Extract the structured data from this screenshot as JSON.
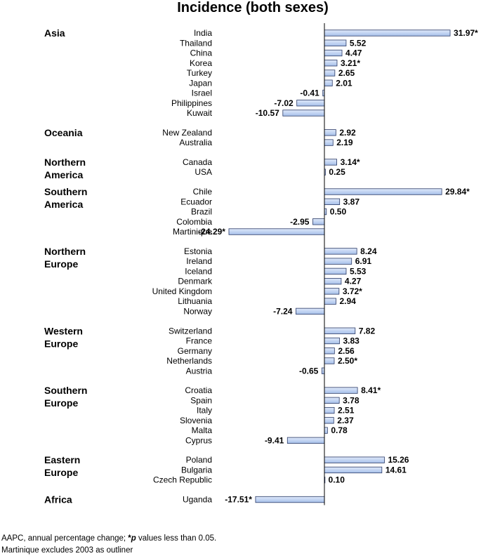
{
  "chart_data": {
    "type": "bar",
    "orientation": "horizontal",
    "title": "Incidence (both sexes)",
    "xlabel": "",
    "ylabel": "",
    "xlim": [
      -24.29,
      31.97
    ],
    "groups": [
      {
        "region": [
          "Asia"
        ],
        "items": [
          {
            "country": "India",
            "value": 31.97,
            "label": "31.97*"
          },
          {
            "country": "Thailand",
            "value": 5.52,
            "label": "5.52"
          },
          {
            "country": "China",
            "value": 4.47,
            "label": "4.47"
          },
          {
            "country": "Korea",
            "value": 3.21,
            "label": "3.21*"
          },
          {
            "country": "Turkey",
            "value": 2.65,
            "label": "2.65"
          },
          {
            "country": "Japan",
            "value": 2.01,
            "label": "2.01"
          },
          {
            "country": "Israel",
            "value": -0.41,
            "label": "-0.41"
          },
          {
            "country": "Philippines",
            "value": -7.02,
            "label": "-7.02"
          },
          {
            "country": "Kuwait",
            "value": -10.57,
            "label": "-10.57"
          }
        ]
      },
      {
        "region": [
          "Oceania"
        ],
        "items": [
          {
            "country": "New Zealand",
            "value": 2.92,
            "label": "2.92"
          },
          {
            "country": "Australia",
            "value": 2.19,
            "label": "2.19"
          }
        ]
      },
      {
        "region": [
          "Northern",
          "America"
        ],
        "items": [
          {
            "country": "Canada",
            "value": 3.14,
            "label": "3.14*"
          },
          {
            "country": "USA",
            "value": 0.25,
            "label": "0.25"
          }
        ]
      },
      {
        "region": [
          "Southern",
          "America"
        ],
        "items": [
          {
            "country": "Chile",
            "value": 29.84,
            "label": "29.84*"
          },
          {
            "country": "Ecuador",
            "value": 3.87,
            "label": "3.87"
          },
          {
            "country": "Brazil",
            "value": 0.5,
            "label": "0.50"
          },
          {
            "country": "Colombia",
            "value": -2.95,
            "label": "-2.95"
          },
          {
            "country": "Martinique",
            "value": -24.29,
            "label": "-24.29*"
          }
        ]
      },
      {
        "region": [
          "Northern",
          "Europe"
        ],
        "items": [
          {
            "country": "Estonia",
            "value": 8.24,
            "label": "8.24"
          },
          {
            "country": "Ireland",
            "value": 6.91,
            "label": "6.91"
          },
          {
            "country": "Iceland",
            "value": 5.53,
            "label": "5.53"
          },
          {
            "country": "Denmark",
            "value": 4.27,
            "label": "4.27"
          },
          {
            "country": "United Kingdom",
            "value": 3.72,
            "label": "3.72*"
          },
          {
            "country": "Lithuania",
            "value": 2.94,
            "label": "2.94"
          },
          {
            "country": "Norway",
            "value": -7.24,
            "label": "-7.24"
          }
        ]
      },
      {
        "region": [
          "Western",
          "Europe"
        ],
        "items": [
          {
            "country": "Switzerland",
            "value": 7.82,
            "label": "7.82"
          },
          {
            "country": "France",
            "value": 3.83,
            "label": "3.83"
          },
          {
            "country": "Germany",
            "value": 2.56,
            "label": "2.56"
          },
          {
            "country": "Netherlands",
            "value": 2.5,
            "label": "2.50*"
          },
          {
            "country": "Austria",
            "value": -0.65,
            "label": "-0.65"
          }
        ]
      },
      {
        "region": [
          "Southern",
          "Europe"
        ],
        "items": [
          {
            "country": "Croatia",
            "value": 8.41,
            "label": "8.41*"
          },
          {
            "country": "Spain",
            "value": 3.78,
            "label": "3.78"
          },
          {
            "country": "Italy",
            "value": 2.51,
            "label": "2.51"
          },
          {
            "country": "Slovenia",
            "value": 2.37,
            "label": "2.37"
          },
          {
            "country": "Malta",
            "value": 0.78,
            "label": "0.78"
          },
          {
            "country": "Cyprus",
            "value": -9.41,
            "label": "-9.41"
          }
        ]
      },
      {
        "region": [
          "Eastern",
          "Europe"
        ],
        "items": [
          {
            "country": "Poland",
            "value": 15.26,
            "label": "15.26"
          },
          {
            "country": "Bulgaria",
            "value": 14.61,
            "label": "14.61"
          },
          {
            "country": "Czech Republic",
            "value": 0.1,
            "label": "0.10"
          }
        ]
      },
      {
        "region": [
          "Africa"
        ],
        "items": [
          {
            "country": "Uganda",
            "value": -17.51,
            "label": "-17.51*"
          }
        ]
      }
    ]
  },
  "footnote": {
    "line1_pre": "AAPC, annual percentage change; ",
    "line1_star": "*",
    "line1_p": "p",
    "line1_post": " values less than 0.05.",
    "line2": "Martinique excludes 2003 as outliner"
  },
  "colors": {
    "bar_light": "#dfe9fa",
    "bar_dark": "#a6c0ea",
    "bar_stroke": "#2b3a67",
    "axis": "#000000"
  }
}
